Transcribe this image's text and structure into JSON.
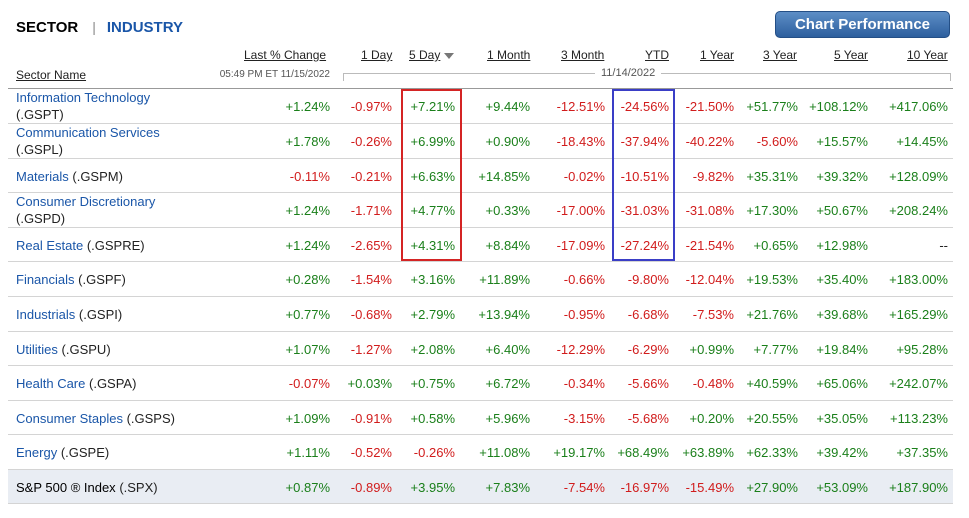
{
  "tabs": {
    "sector": "SECTOR",
    "separator": "|",
    "industry": "INDUSTRY"
  },
  "chart_button_label": "Chart Performance",
  "columns": {
    "last_pct_change": "Last % Change",
    "day1": "1 Day",
    "day5": "5 Day",
    "month1": "1 Month",
    "month3": "3 Month",
    "ytd": "YTD",
    "year1": "1 Year",
    "year3": "3 Year",
    "year5": "5 Year",
    "year10": "10 Year",
    "sector_name": "Sector Name"
  },
  "timestamp": "05:49 PM ET 11/15/2022",
  "period_date": "11/14/2022",
  "colors": {
    "positive": "#1a7f1a",
    "negative": "#d11c1c",
    "link": "#1a56a8",
    "highlight_red": "#d42424",
    "highlight_blue": "#3a3ec6"
  },
  "rows": [
    {
      "name": "Information Technology",
      "ticker": "(.GSPT)",
      "two_line": true,
      "values": [
        "+1.24%",
        "-0.97%",
        "+7.21%",
        "+9.44%",
        "-12.51%",
        "-24.56%",
        "-21.50%",
        "+51.77%",
        "+108.12%",
        "+417.06%"
      ]
    },
    {
      "name": "Communication Services",
      "ticker": "(.GSPL)",
      "two_line": true,
      "values": [
        "+1.78%",
        "-0.26%",
        "+6.99%",
        "+0.90%",
        "-18.43%",
        "-37.94%",
        "-40.22%",
        "-5.60%",
        "+15.57%",
        "+14.45%"
      ]
    },
    {
      "name": "Materials",
      "ticker": "(.GSPM)",
      "two_line": false,
      "values": [
        "-0.11%",
        "-0.21%",
        "+6.63%",
        "+14.85%",
        "-0.02%",
        "-10.51%",
        "-9.82%",
        "+35.31%",
        "+39.32%",
        "+128.09%"
      ]
    },
    {
      "name": "Consumer Discretionary",
      "ticker": "(.GSPD)",
      "two_line": true,
      "values": [
        "+1.24%",
        "-1.71%",
        "+4.77%",
        "+0.33%",
        "-17.00%",
        "-31.03%",
        "-31.08%",
        "+17.30%",
        "+50.67%",
        "+208.24%"
      ]
    },
    {
      "name": "Real Estate",
      "ticker": "(.GSPRE)",
      "two_line": false,
      "values": [
        "+1.24%",
        "-2.65%",
        "+4.31%",
        "+8.84%",
        "-17.09%",
        "-27.24%",
        "-21.54%",
        "+0.65%",
        "+12.98%",
        "--"
      ]
    },
    {
      "name": "Financials",
      "ticker": "(.GSPF)",
      "two_line": false,
      "values": [
        "+0.28%",
        "-1.54%",
        "+3.16%",
        "+11.89%",
        "-0.66%",
        "-9.80%",
        "-12.04%",
        "+19.53%",
        "+35.40%",
        "+183.00%"
      ]
    },
    {
      "name": "Industrials",
      "ticker": "(.GSPI)",
      "two_line": false,
      "values": [
        "+0.77%",
        "-0.68%",
        "+2.79%",
        "+13.94%",
        "-0.95%",
        "-6.68%",
        "-7.53%",
        "+21.76%",
        "+39.68%",
        "+165.29%"
      ]
    },
    {
      "name": "Utilities",
      "ticker": "(.GSPU)",
      "two_line": false,
      "values": [
        "+1.07%",
        "-1.27%",
        "+2.08%",
        "+6.40%",
        "-12.29%",
        "-6.29%",
        "+0.99%",
        "+7.77%",
        "+19.84%",
        "+95.28%"
      ]
    },
    {
      "name": "Health Care",
      "ticker": "(.GSPA)",
      "two_line": false,
      "values": [
        "-0.07%",
        "+0.03%",
        "+0.75%",
        "+6.72%",
        "-0.34%",
        "-5.66%",
        "-0.48%",
        "+40.59%",
        "+65.06%",
        "+242.07%"
      ]
    },
    {
      "name": "Consumer Staples",
      "ticker": "(.GSPS)",
      "two_line": false,
      "values": [
        "+1.09%",
        "-0.91%",
        "+0.58%",
        "+5.96%",
        "-3.15%",
        "-5.68%",
        "+0.20%",
        "+20.55%",
        "+35.05%",
        "+113.23%"
      ]
    },
    {
      "name": "Energy",
      "ticker": "(.GSPE)",
      "two_line": false,
      "values": [
        "+1.11%",
        "-0.52%",
        "-0.26%",
        "+11.08%",
        "+19.17%",
        "+68.49%",
        "+63.89%",
        "+62.33%",
        "+39.42%",
        "+37.35%"
      ]
    },
    {
      "name": "S&P 500 ® Index",
      "ticker": "(.SPX)",
      "two_line": false,
      "is_index": true,
      "values": [
        "+0.87%",
        "-0.89%",
        "+3.95%",
        "+7.83%",
        "-7.54%",
        "-16.97%",
        "-15.49%",
        "+27.90%",
        "+53.09%",
        "+187.90%"
      ]
    }
  ]
}
